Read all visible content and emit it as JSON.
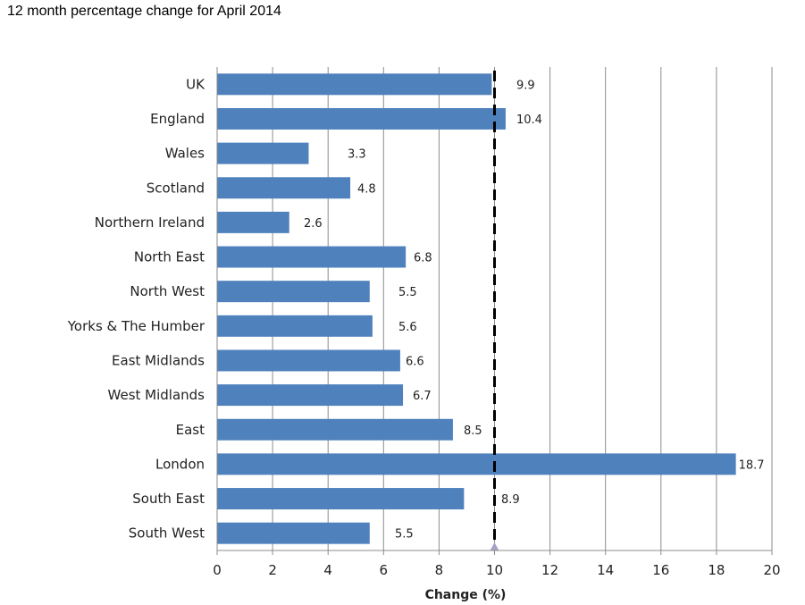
{
  "page_title": "12 month percentage change for April 2014",
  "chart_data": {
    "type": "bar",
    "orientation": "horizontal",
    "title": "12 month percentage change for April 2014",
    "categories": [
      "UK",
      "England",
      "Wales",
      "Scotland",
      "Northern Ireland",
      "North East",
      "North West",
      "Yorks & The Humber",
      "East Midlands",
      "West Midlands",
      "East",
      "London",
      "South East",
      "South West"
    ],
    "values": [
      9.9,
      10.4,
      3.3,
      4.8,
      2.6,
      6.8,
      5.5,
      5.6,
      6.6,
      6.7,
      8.5,
      18.7,
      8.9,
      5.5
    ],
    "data_labels": [
      "9.9",
      "10.4",
      "3.3",
      "4.8",
      "2.6",
      "6.8",
      "5.5",
      "5.6",
      "6.6",
      "6.7",
      "8.5",
      "18.7",
      "8.9",
      "5.5"
    ],
    "xlabel": "Change (%)",
    "ylabel": "",
    "xlim": [
      0,
      20
    ],
    "x_ticks": [
      "0",
      "2",
      "4",
      "6",
      "8",
      "10",
      "12",
      "14",
      "16",
      "18",
      "20"
    ],
    "reference_line": {
      "value": 10,
      "style": "dashed"
    },
    "grid": "vertical",
    "bar_color": "#4F81BD",
    "reference_color": "#000000",
    "marker_color": "#A9A2C8"
  }
}
